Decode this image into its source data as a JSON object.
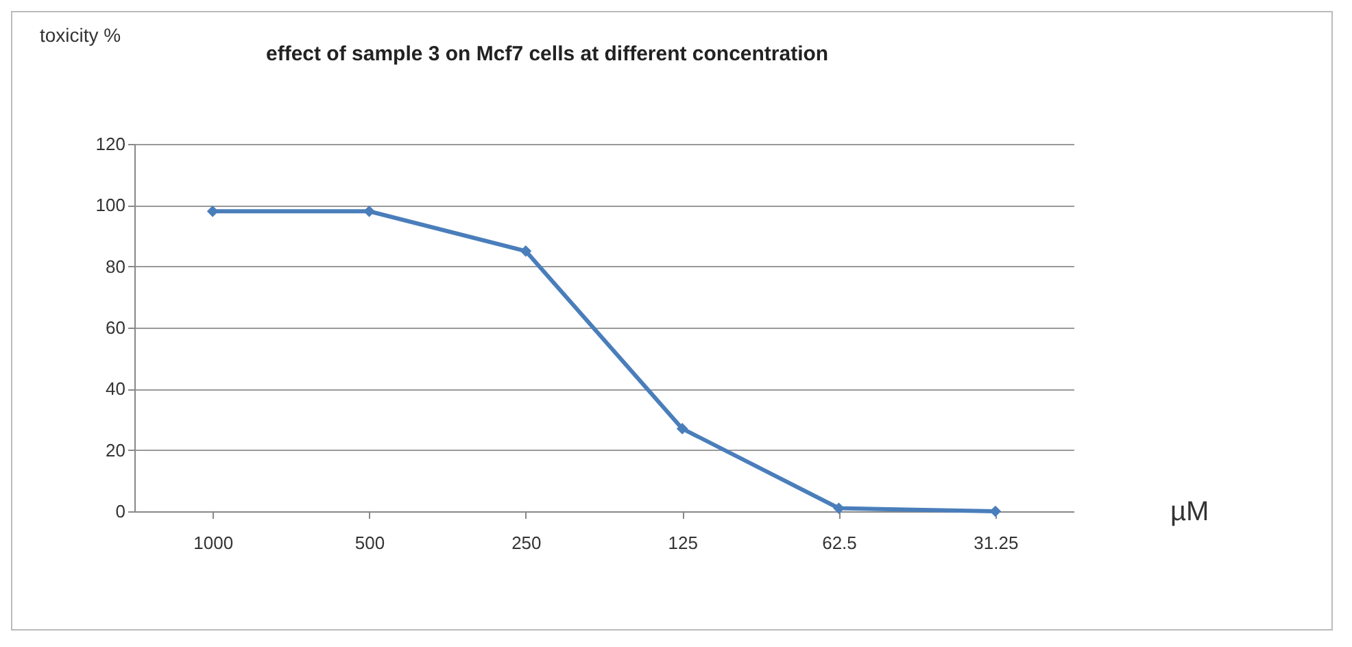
{
  "chart_data": {
    "type": "line",
    "title": "effect of sample 3 on Mcf7 cells at different concentration",
    "xlabel": "µM",
    "ylabel": "toxicity %",
    "categories": [
      "1000",
      "500",
      "250",
      "125",
      "62.5",
      "31.25"
    ],
    "series": [
      {
        "color": "#4a7ebb",
        "values": [
          98,
          98,
          85,
          27,
          1,
          0
        ]
      }
    ],
    "ylim": [
      0,
      120
    ],
    "yticks": [
      0,
      20,
      40,
      60,
      80,
      100,
      120
    ],
    "grid": "y",
    "marker": "diamond",
    "line_style": "solid",
    "legend": false
  }
}
